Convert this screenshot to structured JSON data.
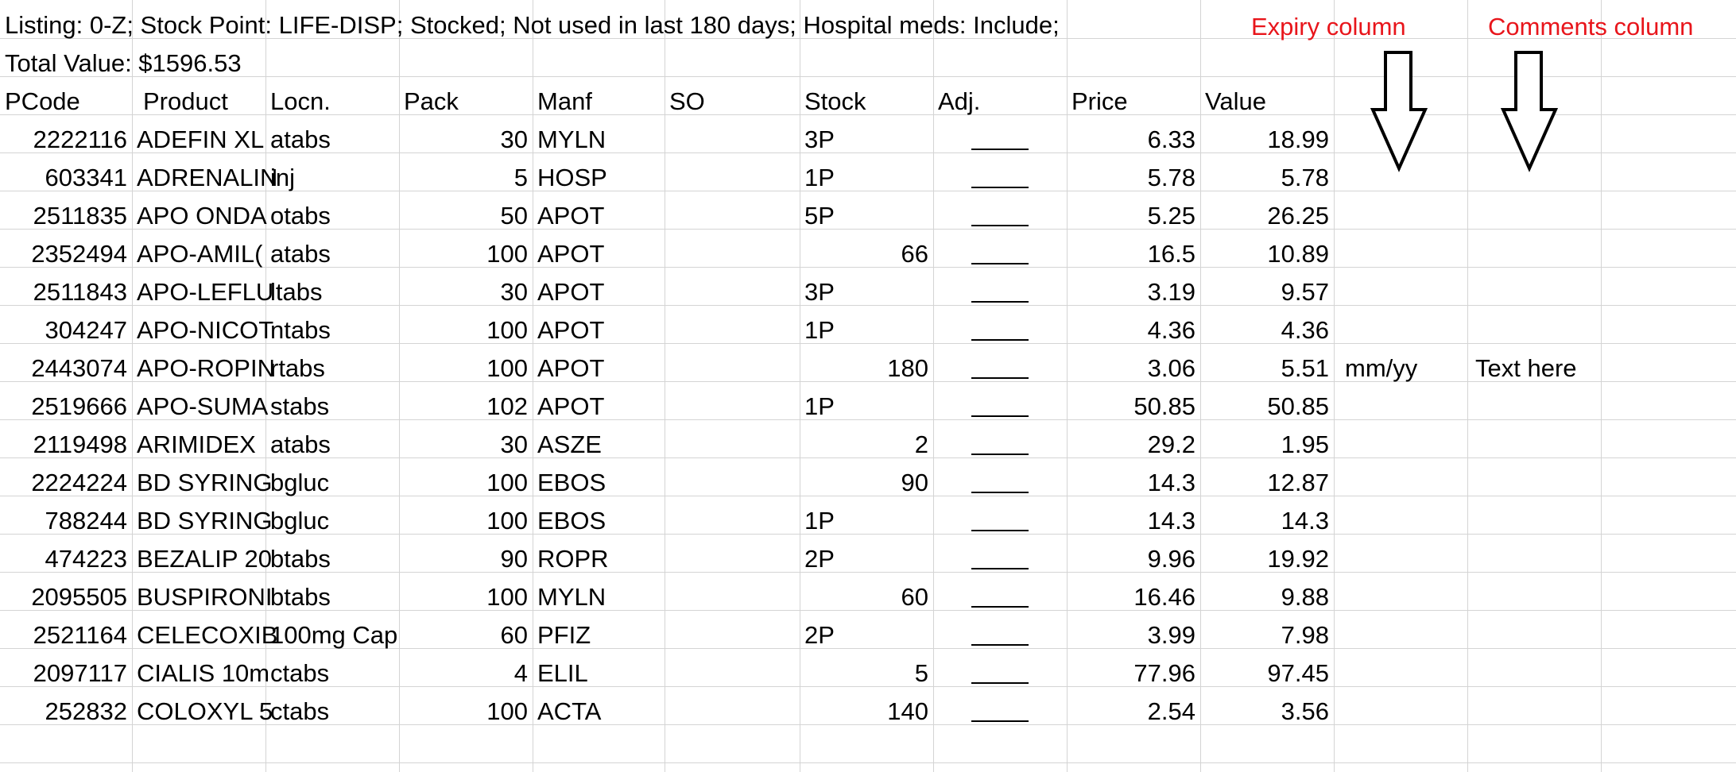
{
  "info": {
    "line1": "Listing: 0-Z; Stock Point: LIFE-DISP; Stocked; Not used in last 180 days; Hospital meds: Include;",
    "line2": "Total Value: $1596.53"
  },
  "annotations": {
    "expiry_label": "Expiry column",
    "comments_label": "Comments column",
    "color": "#e8151b",
    "arrow_icon": "down-arrow-icon"
  },
  "headers": {
    "pcode": "PCode",
    "product": "Product",
    "locn": "Locn.",
    "pack": "Pack",
    "manf": "Manf",
    "so": "SO",
    "stock": "Stock",
    "adj": "Adj.",
    "price": "Price",
    "value": "Value"
  },
  "rows": [
    {
      "pcode": "2222116",
      "product": "ADEFIN XL",
      "locn": "atabs",
      "pack": "30",
      "manf": "MYLN",
      "stock": "3P",
      "price": "6.33",
      "value": "18.99"
    },
    {
      "pcode": "603341",
      "product": "ADRENALIN",
      "locn": "inj",
      "pack": "5",
      "manf": "HOSP",
      "stock": "1P",
      "price": "5.78",
      "value": "5.78"
    },
    {
      "pcode": "2511835",
      "product": "APO ONDA",
      "locn": "otabs",
      "pack": "50",
      "manf": "APOT",
      "stock": "5P",
      "price": "5.25",
      "value": "26.25"
    },
    {
      "pcode": "2352494",
      "product": "APO-AMIL(",
      "locn": "atabs",
      "pack": "100",
      "manf": "APOT",
      "stock": "66",
      "price": "16.5",
      "value": "10.89"
    },
    {
      "pcode": "2511843",
      "product": "APO-LEFLU",
      "locn": "ltabs",
      "pack": "30",
      "manf": "APOT",
      "stock": "3P",
      "price": "3.19",
      "value": "9.57"
    },
    {
      "pcode": "304247",
      "product": "APO-NICOT",
      "locn": "ntabs",
      "pack": "100",
      "manf": "APOT",
      "stock": "1P",
      "price": "4.36",
      "value": "4.36"
    },
    {
      "pcode": "2443074",
      "product": "APO-ROPIN",
      "locn": "rtabs",
      "pack": "100",
      "manf": "APOT",
      "stock": "180",
      "price": "3.06",
      "value": "5.51",
      "expiry": "mm/yy",
      "comments": "Text here"
    },
    {
      "pcode": "2519666",
      "product": "APO-SUMA",
      "locn": "stabs",
      "pack": "102",
      "manf": "APOT",
      "stock": "1P",
      "price": "50.85",
      "value": "50.85"
    },
    {
      "pcode": "2119498",
      "product": "ARIMIDEX",
      "locn": "atabs",
      "pack": "30",
      "manf": "ASZE",
      "stock": "2",
      "price": "29.2",
      "value": "1.95"
    },
    {
      "pcode": "2224224",
      "product": "BD SYRING",
      "locn": "bgluc",
      "pack": "100",
      "manf": "EBOS",
      "stock": "90",
      "price": "14.3",
      "value": "12.87"
    },
    {
      "pcode": "788244",
      "product": "BD SYRING",
      "locn": "bgluc",
      "pack": "100",
      "manf": "EBOS",
      "stock": "1P",
      "price": "14.3",
      "value": "14.3"
    },
    {
      "pcode": "474223",
      "product": "BEZALIP 20",
      "locn": "btabs",
      "pack": "90",
      "manf": "ROPR",
      "stock": "2P",
      "price": "9.96",
      "value": "19.92"
    },
    {
      "pcode": "2095505",
      "product": "BUSPIRONI",
      "locn": "btabs",
      "pack": "100",
      "manf": "MYLN",
      "stock": "60",
      "price": "16.46",
      "value": "9.88"
    },
    {
      "pcode": "2521164",
      "product": "CELECOXIB",
      "locn": "100mg Cap",
      "pack": "60",
      "manf": "PFIZ",
      "stock": "2P",
      "price": "3.99",
      "value": "7.98"
    },
    {
      "pcode": "2097117",
      "product": "CIALIS 10m",
      "locn": "ctabs",
      "pack": "4",
      "manf": "ELIL",
      "stock": "5",
      "price": "77.96",
      "value": "97.45"
    },
    {
      "pcode": "252832",
      "product": "COLOXYL 5",
      "locn": "ctabs",
      "pack": "100",
      "manf": "ACTA",
      "stock": "140",
      "price": "2.54",
      "value": "3.56"
    }
  ]
}
